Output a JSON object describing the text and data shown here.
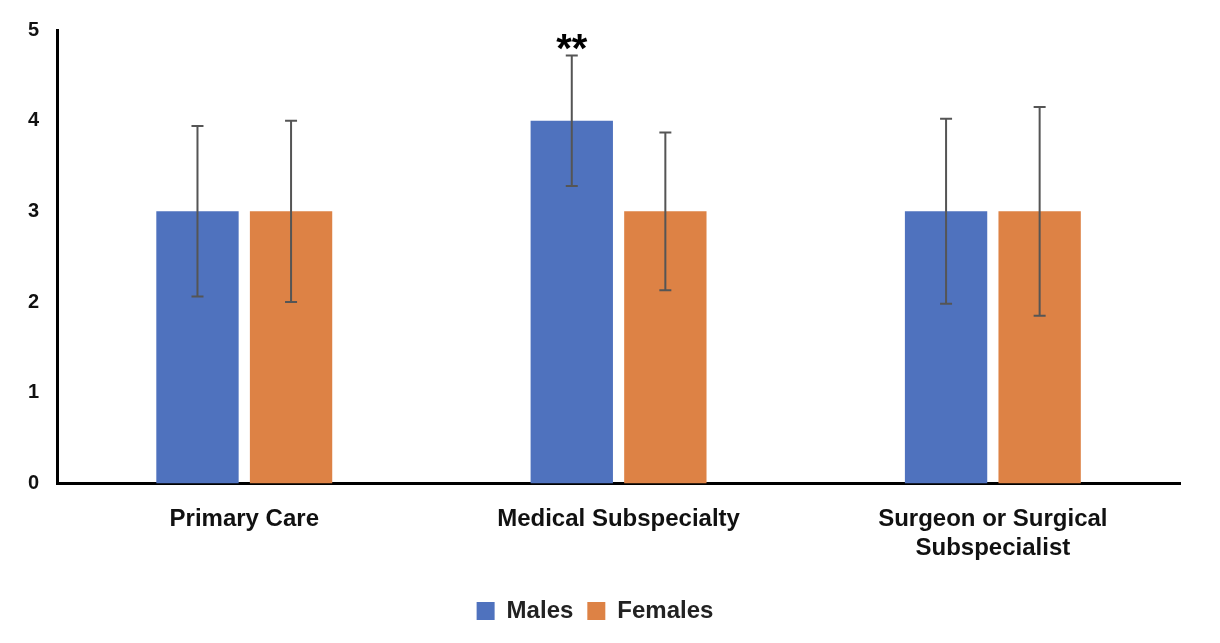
{
  "chart_data": {
    "type": "bar",
    "categories": [
      "Primary Care",
      "Medical Subspecialty",
      "Surgeon or Surgical Subspecialist"
    ],
    "series": [
      {
        "name": "Males",
        "color": "#4f72be",
        "values": [
          3,
          4,
          3
        ],
        "errors": [
          0.94,
          0.72,
          1.02
        ]
      },
      {
        "name": "Females",
        "color": "#dd8245",
        "values": [
          3,
          3,
          3
        ],
        "errors": [
          1.0,
          0.87,
          1.15
        ]
      }
    ],
    "ylim": [
      0,
      5
    ],
    "yticks": [
      0,
      1,
      2,
      3,
      4,
      5
    ],
    "grid": false,
    "legend": "bottom",
    "annotations": [
      "**"
    ]
  }
}
